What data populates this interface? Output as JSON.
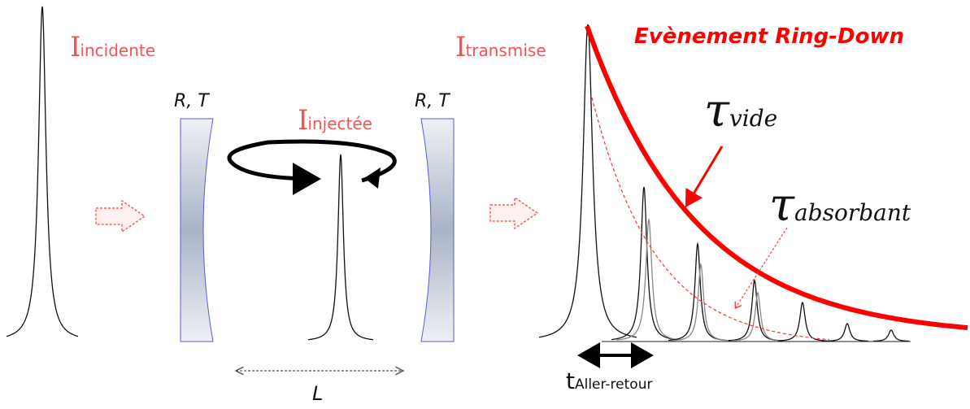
{
  "labels": {
    "incident_main": "I",
    "incident_sub": "incidente",
    "injected_main": "I",
    "injected_sub": "injectée",
    "transmitted_main": "I",
    "transmitted_sub": "transmise",
    "mirror_left": "R, T",
    "mirror_right": "R, T",
    "cavity_length": "L",
    "title": "Evènement Ring-Down",
    "tau_symbol_1": "τ",
    "tau_sub_1": "vide",
    "tau_symbol_2": "τ",
    "tau_sub_2": "absorbant",
    "roundtrip_main": "t",
    "roundtrip_sub": "Aller-retour"
  },
  "colors": {
    "label_red": "#f05454",
    "title_red": "#ff0000",
    "decay_red": "#ff0000",
    "pulse": "#111111",
    "mirror_border": "#5b5bd6",
    "arrow_outline": "#f06060"
  }
}
